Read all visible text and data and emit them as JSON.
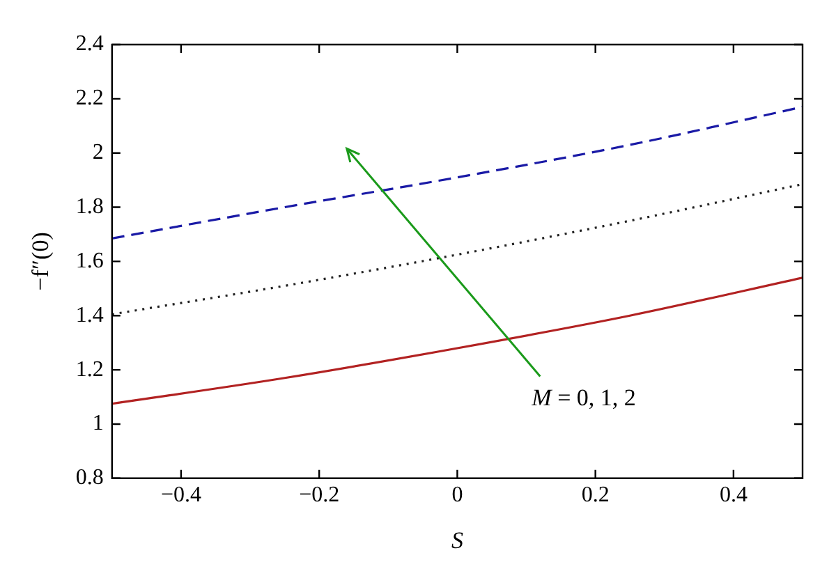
{
  "chart_data": {
    "type": "line",
    "xlabel": "S",
    "ylabel": "−f″(0)",
    "x": [
      -0.5,
      -0.25,
      0,
      0.25,
      0.5
    ],
    "series": [
      {
        "color": "#b22222",
        "line_style": "solid",
        "values": [
          1.075,
          1.17,
          1.28,
          1.4,
          1.54
        ]
      },
      {
        "color": "#222222",
        "line_style": "dotted",
        "values": [
          1.405,
          1.51,
          1.625,
          1.75,
          1.885
        ]
      },
      {
        "color": "#1a1aa6",
        "line_style": "dashed",
        "values": [
          1.685,
          1.8,
          1.91,
          2.03,
          2.17
        ]
      }
    ],
    "xlim": [
      -0.5,
      0.5
    ],
    "xticks": [
      -0.4,
      -0.2,
      0,
      0.2,
      0.4
    ],
    "ylim": [
      0.8,
      2.4
    ],
    "yticks": [
      0.8,
      1,
      1.2,
      1.4,
      1.6,
      1.8,
      2,
      2.2,
      2.4
    ],
    "annotations": [
      "M = 0, 1, 2"
    ],
    "grid": false,
    "legend": false,
    "marker": "none"
  }
}
